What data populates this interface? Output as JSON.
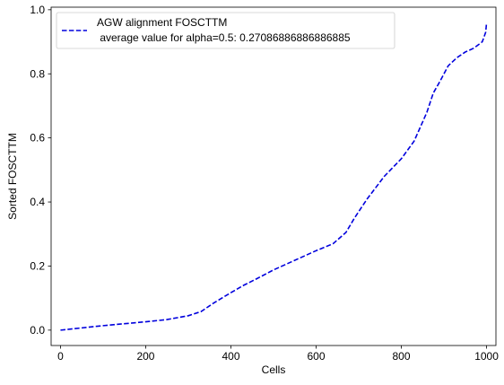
{
  "chart_data": {
    "type": "line",
    "title": "",
    "xlabel": "Cells",
    "ylabel": "Sorted FOSCTTM",
    "xlim": [
      -22,
      1022
    ],
    "ylim": [
      -0.048,
      1.008
    ],
    "xticks": [
      0,
      200,
      400,
      600,
      800,
      1000
    ],
    "xtick_labels": [
      "0",
      "200",
      "400",
      "600",
      "800",
      "1000"
    ],
    "yticks": [
      0.0,
      0.2,
      0.4,
      0.6,
      0.8,
      1.0
    ],
    "ytick_labels": [
      "0.0",
      "0.2",
      "0.4",
      "0.6",
      "0.8",
      "1.0"
    ],
    "grid": false,
    "legend_position": "upper left",
    "series": [
      {
        "name": "AGW alignment FOSCTTM\n average value for alpha=0.5: 0.27086886886886885",
        "legend_line1": "AGW alignment FOSCTTM",
        "legend_line2": " average value for alpha=0.5: 0.27086886886886885",
        "color": "#0000dd",
        "linestyle": "dashed",
        "x": [
          0,
          50,
          100,
          150,
          200,
          250,
          300,
          330,
          360,
          400,
          430,
          460,
          500,
          550,
          600,
          640,
          670,
          690,
          720,
          760,
          800,
          830,
          860,
          875,
          890,
          900,
          910,
          930,
          950,
          970,
          990,
          998,
          1000
        ],
        "y": [
          0.0,
          0.007,
          0.014,
          0.02,
          0.026,
          0.033,
          0.045,
          0.058,
          0.085,
          0.117,
          0.14,
          0.16,
          0.188,
          0.218,
          0.248,
          0.27,
          0.305,
          0.35,
          0.41,
          0.48,
          0.535,
          0.59,
          0.68,
          0.74,
          0.775,
          0.8,
          0.825,
          0.85,
          0.868,
          0.88,
          0.9,
          0.93,
          0.96
        ]
      }
    ]
  }
}
